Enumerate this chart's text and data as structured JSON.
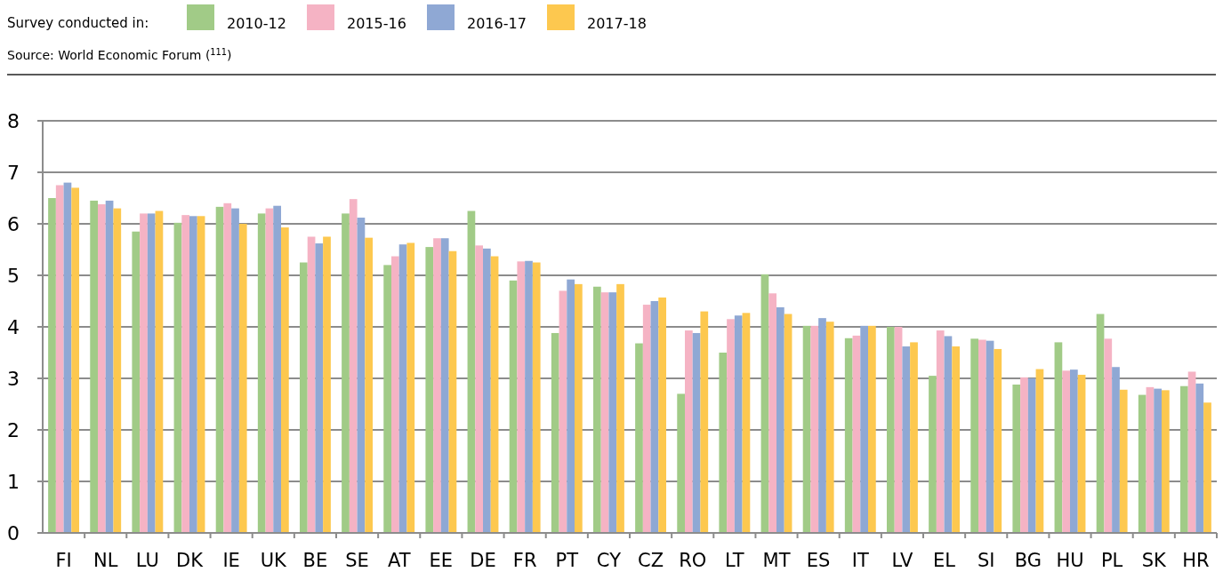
{
  "chart_data": {
    "type": "bar",
    "legend_title": "Survey conducted in:",
    "annotations": [
      "Source: World Economic Forum ($^{111}$)"
    ],
    "categories": [
      "FI",
      "NL",
      "LU",
      "DK",
      "IE",
      "UK",
      "BE",
      "SE",
      "AT",
      "EE",
      "DE",
      "FR",
      "PT",
      "CY",
      "CZ",
      "RO",
      "LT",
      "MT",
      "ES",
      "IT",
      "LV",
      "EL",
      "SI",
      "BG",
      "HU",
      "PL",
      "SK",
      "HR"
    ],
    "series": [
      {
        "name": "2010-12",
        "color": "#a1cb87",
        "values": [
          6.5,
          6.45,
          5.85,
          6.02,
          6.33,
          6.2,
          5.25,
          6.2,
          5.2,
          5.55,
          6.25,
          4.9,
          3.88,
          4.78,
          3.68,
          2.7,
          3.5,
          5.02,
          4.02,
          3.78,
          4.0,
          3.05,
          3.77,
          2.88,
          3.7,
          4.25,
          2.68,
          2.85
        ]
      },
      {
        "name": "2015-16",
        "color": "#f5b3c4",
        "values": [
          6.75,
          6.38,
          6.2,
          6.17,
          6.4,
          6.3,
          5.75,
          6.48,
          5.37,
          5.72,
          5.58,
          5.27,
          4.7,
          4.67,
          4.43,
          3.93,
          4.15,
          4.65,
          4.02,
          3.83,
          4.0,
          3.93,
          3.75,
          3.02,
          3.15,
          3.77,
          2.83,
          3.13
        ]
      },
      {
        "name": "2016-17",
        "color": "#8fa8d4",
        "values": [
          6.8,
          6.45,
          6.2,
          6.15,
          6.3,
          6.35,
          5.62,
          6.12,
          5.6,
          5.72,
          5.52,
          5.28,
          4.92,
          4.67,
          4.5,
          3.88,
          4.22,
          4.38,
          4.17,
          4.02,
          3.62,
          3.82,
          3.73,
          3.0,
          3.17,
          3.22,
          2.8,
          2.9
        ]
      },
      {
        "name": "2017-18",
        "color": "#fdc84f",
        "values": [
          6.7,
          6.3,
          6.25,
          6.15,
          6.0,
          5.93,
          5.75,
          5.73,
          5.63,
          5.47,
          5.37,
          5.25,
          4.83,
          4.83,
          4.57,
          4.3,
          4.27,
          4.25,
          4.1,
          4.02,
          3.7,
          3.62,
          3.57,
          3.18,
          3.07,
          2.78,
          2.77,
          2.53
        ]
      }
    ],
    "ylim": [
      0,
      8
    ],
    "yticks": [
      0,
      1,
      2,
      3,
      4,
      5,
      6,
      7,
      8
    ],
    "grid": "y",
    "legend": "top left"
  }
}
